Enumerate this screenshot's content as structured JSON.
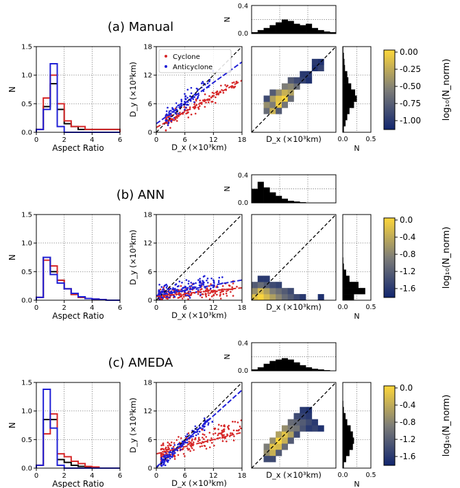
{
  "rows": [
    {
      "title": "(a) Manual",
      "hist": {
        "xlabel": "Aspect Ratio",
        "ylabel": "N",
        "xlim": [
          0,
          6
        ],
        "xticks": [
          "0",
          "2",
          "4",
          "6"
        ],
        "ylim": [
          0,
          1.5
        ],
        "yticks": [
          "0.0",
          "0.5",
          "1.0",
          "1.5"
        ],
        "bins": [
          0,
          0.5,
          1,
          1.5,
          2,
          2.5,
          3,
          3.5,
          4,
          4.5,
          5,
          5.5,
          6
        ],
        "series": [
          {
            "color": "#000000",
            "values": [
              0.05,
              0.45,
              0.85,
              0.4,
              0.15,
              0.1,
              0.05,
              0.05,
              0.05,
              0.05,
              0.05,
              0.05
            ]
          },
          {
            "color": "#d62728",
            "values": [
              0.05,
              0.6,
              1.0,
              0.5,
              0.2,
              0.1,
              0.1,
              0.05,
              0.05,
              0.05,
              0.05,
              0.05
            ]
          },
          {
            "color": "#1f1fd6",
            "values": [
              0.05,
              0.4,
              1.2,
              0.1,
              0.0,
              0.0,
              0.0,
              0.0,
              0.0,
              0.0,
              0.0,
              0.0
            ]
          }
        ]
      },
      "scatter": {
        "xlabel": "D_x (×10³km)",
        "ylabel": "D_y (×10³km)",
        "xlim": [
          0,
          18
        ],
        "ylim": [
          0,
          18
        ],
        "xticks": [
          "0",
          "6",
          "12",
          "18"
        ],
        "yticks": [
          "0",
          "6",
          "12",
          "18"
        ],
        "legend": [
          {
            "label": "Cyclone",
            "color": "#d62728"
          },
          {
            "label": "Anticyclone",
            "color": "#1f1fd6"
          }
        ],
        "fits": [
          {
            "color": "#d62728",
            "y0": 1.0,
            "slope": 0.55
          },
          {
            "color": "#1f1fd6",
            "y0": 1.8,
            "slope": 0.72
          }
        ],
        "clouds": [
          {
            "color": "#d62728",
            "n": 130,
            "seed": 11,
            "xmin": 2,
            "xmax": 17,
            "slope": 0.55,
            "y0": 1.0,
            "spread": 1.3
          },
          {
            "color": "#1f1fd6",
            "n": 110,
            "seed": 23,
            "xmin": 2,
            "xmax": 12,
            "slope": 0.8,
            "y0": 1.5,
            "spread": 1.6
          }
        ]
      },
      "heatmap": {
        "xlabel": "D_x (×10³km)",
        "cells": [
          [
            2,
            3,
            0.4
          ],
          [
            2,
            4,
            0.6
          ],
          [
            3,
            3,
            0.8
          ],
          [
            3,
            4,
            0.5
          ],
          [
            3,
            5,
            0.7
          ],
          [
            4,
            4,
            0.95
          ],
          [
            4,
            5,
            0.9
          ],
          [
            4,
            6,
            0.6
          ],
          [
            5,
            5,
            1.0
          ],
          [
            5,
            6,
            0.8
          ],
          [
            5,
            7,
            0.5
          ],
          [
            6,
            6,
            0.7
          ],
          [
            6,
            7,
            0.55
          ],
          [
            7,
            7,
            0.4
          ],
          [
            7,
            8,
            0.2
          ],
          [
            6,
            8,
            0.3
          ],
          [
            8,
            8,
            0.15
          ],
          [
            8,
            9,
            0.1
          ],
          [
            9,
            8,
            0.05
          ],
          [
            9,
            9,
            0.1
          ],
          [
            10,
            10,
            0.05
          ],
          [
            10,
            11,
            0.1
          ],
          [
            11,
            11,
            0.05
          ],
          [
            11,
            10,
            0.15
          ],
          [
            4,
            3,
            0.3
          ],
          [
            5,
            4,
            0.45
          ],
          [
            6,
            5,
            0.4
          ],
          [
            2,
            5,
            0.2
          ],
          [
            3,
            6,
            0.3
          ]
        ],
        "xhist": [
          0.02,
          0.05,
          0.08,
          0.12,
          0.16,
          0.2,
          0.18,
          0.14,
          0.12,
          0.14,
          0.08,
          0.05,
          0.03,
          0.02
        ],
        "yhist": [
          0.02,
          0.05,
          0.08,
          0.12,
          0.2,
          0.25,
          0.22,
          0.15,
          0.1,
          0.08,
          0.04,
          0.03,
          0.02,
          0.01
        ],
        "xhist_ticks": [
          "0.0",
          "0.4"
        ],
        "yhist_ticks": [
          "0.0",
          "0.5"
        ],
        "hist_label": "N"
      },
      "colorbar": {
        "label": "log₁₀(N_norm)",
        "ticks": [
          "0.00",
          "-0.25",
          "-0.50",
          "-0.75",
          "-1.00"
        ]
      }
    },
    {
      "title": "(b) ANN",
      "hist": {
        "xlabel": "Aspect Ratio",
        "ylabel": "N",
        "xlim": [
          0,
          6
        ],
        "xticks": [
          "0",
          "2",
          "4",
          "6"
        ],
        "ylim": [
          0,
          1.5
        ],
        "yticks": [
          "0.0",
          "0.5",
          "1.0",
          "1.5"
        ],
        "bins": [
          0,
          0.5,
          1,
          1.5,
          2,
          2.5,
          3,
          3.5,
          4,
          4.5,
          5,
          5.5,
          6
        ],
        "series": [
          {
            "color": "#000000",
            "values": [
              0.05,
              0.75,
              0.5,
              0.35,
              0.2,
              0.1,
              0.05,
              0.03,
              0.02,
              0.01,
              0.0,
              0.0
            ]
          },
          {
            "color": "#d62728",
            "values": [
              0.05,
              0.7,
              0.6,
              0.35,
              0.2,
              0.1,
              0.05,
              0.03,
              0.02,
              0.01,
              0.0,
              0.0
            ]
          },
          {
            "color": "#1f1fd6",
            "values": [
              0.05,
              0.75,
              0.45,
              0.3,
              0.2,
              0.12,
              0.06,
              0.03,
              0.02,
              0.01,
              0.0,
              0.0
            ]
          }
        ]
      },
      "scatter": {
        "xlabel": "D_x (×10³km)",
        "ylabel": "D_y (×10³km)",
        "xlim": [
          0,
          18
        ],
        "ylim": [
          0,
          18
        ],
        "xticks": [
          "0",
          "6",
          "12",
          "18"
        ],
        "yticks": [
          "0",
          "6",
          "12",
          "18"
        ],
        "legend": [],
        "fits": [
          {
            "color": "#d62728",
            "y0": 0.8,
            "slope": 0.1
          },
          {
            "color": "#1f1fd6",
            "y0": 1.0,
            "slope": 0.18
          }
        ],
        "clouds": [
          {
            "color": "#d62728",
            "n": 200,
            "seed": 37,
            "xmin": 0.5,
            "xmax": 17,
            "slope": 0.1,
            "y0": 0.8,
            "spread": 1.3
          },
          {
            "color": "#1f1fd6",
            "n": 160,
            "seed": 41,
            "xmin": 0.5,
            "xmax": 14,
            "slope": 0.2,
            "y0": 1.2,
            "spread": 1.4
          }
        ]
      },
      "heatmap": {
        "xlabel": "D_x (×10³km)",
        "cells": [
          [
            0,
            0,
            0.9
          ],
          [
            0,
            1,
            0.6
          ],
          [
            1,
            0,
            1.0
          ],
          [
            1,
            1,
            0.85
          ],
          [
            2,
            0,
            0.85
          ],
          [
            2,
            1,
            0.7
          ],
          [
            3,
            0,
            0.7
          ],
          [
            3,
            1,
            0.5
          ],
          [
            4,
            0,
            0.55
          ],
          [
            4,
            1,
            0.4
          ],
          [
            5,
            0,
            0.4
          ],
          [
            5,
            1,
            0.3
          ],
          [
            6,
            0,
            0.3
          ],
          [
            6,
            1,
            0.2
          ],
          [
            7,
            0,
            0.2
          ],
          [
            8,
            0,
            0.1
          ],
          [
            0,
            2,
            0.3
          ],
          [
            1,
            2,
            0.4
          ],
          [
            2,
            2,
            0.3
          ],
          [
            3,
            2,
            0.2
          ],
          [
            4,
            2,
            0.15
          ],
          [
            1,
            3,
            0.1
          ],
          [
            2,
            3,
            0.1
          ],
          [
            11,
            0,
            0.05
          ]
        ],
        "xhist": [
          0.2,
          0.3,
          0.22,
          0.15,
          0.1,
          0.06,
          0.03,
          0.02,
          0.01,
          0.0,
          0.0,
          0.0,
          0.0,
          0.0
        ],
        "yhist": [
          0.2,
          0.4,
          0.28,
          0.12,
          0.06,
          0.02,
          0.01,
          0.0,
          0.0,
          0.0,
          0.0,
          0.0,
          0.0,
          0.0
        ],
        "xhist_ticks": [
          "0.0",
          "0.4"
        ],
        "yhist_ticks": [
          "0.0",
          "0.5"
        ],
        "hist_label": "N"
      },
      "colorbar": {
        "label": "log₁₀(N_norm)",
        "ticks": [
          "0.0",
          "-0.4",
          "-0.8",
          "-1.2",
          "-1.6"
        ]
      }
    },
    {
      "title": "(c) AMEDA",
      "hist": {
        "xlabel": "Aspect Ratio",
        "ylabel": "N",
        "xlim": [
          0,
          6
        ],
        "xticks": [
          "0",
          "2",
          "4",
          "6"
        ],
        "ylim": [
          0,
          1.5
        ],
        "yticks": [
          "0.0",
          "0.5",
          "1.0",
          "1.5"
        ],
        "bins": [
          0,
          0.5,
          1,
          1.5,
          2,
          2.5,
          3,
          3.5,
          4,
          4.5,
          5,
          5.5,
          6
        ],
        "series": [
          {
            "color": "#000000",
            "values": [
              0.05,
              0.85,
              0.85,
              0.15,
              0.1,
              0.05,
              0.03,
              0.02,
              0.0,
              0.0,
              0.0,
              0.0
            ]
          },
          {
            "color": "#d62728",
            "values": [
              0.05,
              0.6,
              0.95,
              0.25,
              0.2,
              0.12,
              0.08,
              0.03,
              0.02,
              0.0,
              0.0,
              0.0
            ]
          },
          {
            "color": "#1f1fd6",
            "values": [
              0.05,
              1.38,
              0.7,
              0.05,
              0.0,
              0.0,
              0.0,
              0.0,
              0.0,
              0.0,
              0.0,
              0.0
            ]
          }
        ]
      },
      "scatter": {
        "xlabel": "D_x (×10³km)",
        "ylabel": "D_y (×10³km)",
        "xlim": [
          0,
          18
        ],
        "ylim": [
          0,
          18
        ],
        "xticks": [
          "0",
          "6",
          "12",
          "18"
        ],
        "yticks": [
          "0",
          "6",
          "12",
          "18"
        ],
        "legend": [],
        "fits": [
          {
            "color": "#d62728",
            "y0": 3.0,
            "slope": 0.25
          },
          {
            "color": "#1f1fd6",
            "y0": 0.2,
            "slope": 0.9
          }
        ],
        "clouds": [
          {
            "color": "#d62728",
            "n": 200,
            "seed": 53,
            "xmin": 1,
            "xmax": 18,
            "slope": 0.3,
            "y0": 3.0,
            "spread": 2.0
          },
          {
            "color": "#1f1fd6",
            "n": 140,
            "seed": 67,
            "xmin": 1,
            "xmax": 12,
            "slope": 0.88,
            "y0": 0.3,
            "spread": 0.9
          }
        ]
      },
      "heatmap": {
        "xlabel": "D_x (×10³km)",
        "cells": [
          [
            2,
            2,
            0.6
          ],
          [
            2,
            3,
            0.5
          ],
          [
            3,
            2,
            0.8
          ],
          [
            3,
            3,
            0.9
          ],
          [
            3,
            4,
            0.6
          ],
          [
            4,
            3,
            0.85
          ],
          [
            4,
            4,
            1.0
          ],
          [
            4,
            5,
            0.7
          ],
          [
            5,
            4,
            0.8
          ],
          [
            5,
            5,
            0.9
          ],
          [
            5,
            6,
            0.6
          ],
          [
            6,
            5,
            0.7
          ],
          [
            6,
            6,
            0.5
          ],
          [
            6,
            7,
            0.4
          ],
          [
            7,
            6,
            0.45
          ],
          [
            7,
            7,
            0.35
          ],
          [
            7,
            8,
            0.2
          ],
          [
            8,
            6,
            0.25
          ],
          [
            8,
            7,
            0.3
          ],
          [
            8,
            8,
            0.15
          ],
          [
            9,
            7,
            0.2
          ],
          [
            9,
            8,
            0.1
          ],
          [
            10,
            7,
            0.1
          ],
          [
            10,
            6,
            0.15
          ],
          [
            11,
            6,
            0.05
          ],
          [
            8,
            9,
            0.1
          ],
          [
            9,
            9,
            0.05
          ],
          [
            3,
            1,
            0.2
          ],
          [
            4,
            2,
            0.3
          ],
          [
            2,
            1,
            0.2
          ],
          [
            5,
            3,
            0.4
          ],
          [
            6,
            4,
            0.3
          ],
          [
            7,
            5,
            0.2
          ],
          [
            9,
            6,
            0.1
          ]
        ],
        "xhist": [
          0.02,
          0.05,
          0.1,
          0.14,
          0.16,
          0.18,
          0.16,
          0.12,
          0.08,
          0.05,
          0.03,
          0.02,
          0.01,
          0.0
        ],
        "yhist": [
          0.02,
          0.06,
          0.12,
          0.18,
          0.2,
          0.18,
          0.14,
          0.08,
          0.05,
          0.02,
          0.01,
          0.0,
          0.0,
          0.0
        ],
        "xhist_ticks": [
          "0.0",
          "0.4"
        ],
        "yhist_ticks": [
          "0.0",
          "0.5"
        ],
        "hist_label": "N"
      },
      "colorbar": {
        "label": "log₁₀(N_norm)",
        "ticks": [
          "0.0",
          "-0.4",
          "-0.8",
          "-1.2",
          "-1.6"
        ]
      }
    }
  ],
  "chart_data": [
    {
      "type": "bar",
      "title": "(a) Manual",
      "xlabel": "Aspect Ratio",
      "ylabel": "N",
      "ylim": [
        0,
        1.5
      ]
    },
    {
      "type": "scatter",
      "title": "(a) Manual",
      "xlabel": "D_x (×10³km)",
      "ylabel": "D_y (×10³km)",
      "xlim": [
        0,
        18
      ],
      "ylim": [
        0,
        18
      ],
      "legend": [
        "Cyclone",
        "Anticyclone"
      ],
      "legend_placement": "top-left"
    },
    {
      "type": "heatmap",
      "title": "(a) Manual",
      "xlabel": "D_x (×10³km)",
      "colorbar_label": "log₁₀(N_norm)",
      "colorbar_range": [
        -1.15,
        0.0
      ]
    },
    {
      "type": "bar",
      "title": "(b) ANN",
      "xlabel": "Aspect Ratio",
      "ylabel": "N",
      "ylim": [
        0,
        1.5
      ]
    },
    {
      "type": "scatter",
      "title": "(b) ANN",
      "xlabel": "D_x (×10³km)",
      "ylabel": "D_y (×10³km)",
      "xlim": [
        0,
        18
      ],
      "ylim": [
        0,
        18
      ]
    },
    {
      "type": "heatmap",
      "title": "(b) ANN",
      "xlabel": "D_x (×10³km)",
      "colorbar_label": "log₁₀(N_norm)",
      "colorbar_range": [
        -1.8,
        0.0
      ]
    },
    {
      "type": "bar",
      "title": "(c) AMEDA",
      "xlabel": "Aspect Ratio",
      "ylabel": "N",
      "ylim": [
        0,
        1.5
      ]
    },
    {
      "type": "scatter",
      "title": "(c) AMEDA",
      "xlabel": "D_x (×10³km)",
      "ylabel": "D_y (×10³km)",
      "xlim": [
        0,
        18
      ],
      "ylim": [
        0,
        18
      ]
    },
    {
      "type": "heatmap",
      "title": "(c) AMEDA",
      "xlabel": "D_x (×10³km)",
      "colorbar_label": "log₁₀(N_norm)",
      "colorbar_range": [
        -1.8,
        0.0
      ]
    }
  ]
}
